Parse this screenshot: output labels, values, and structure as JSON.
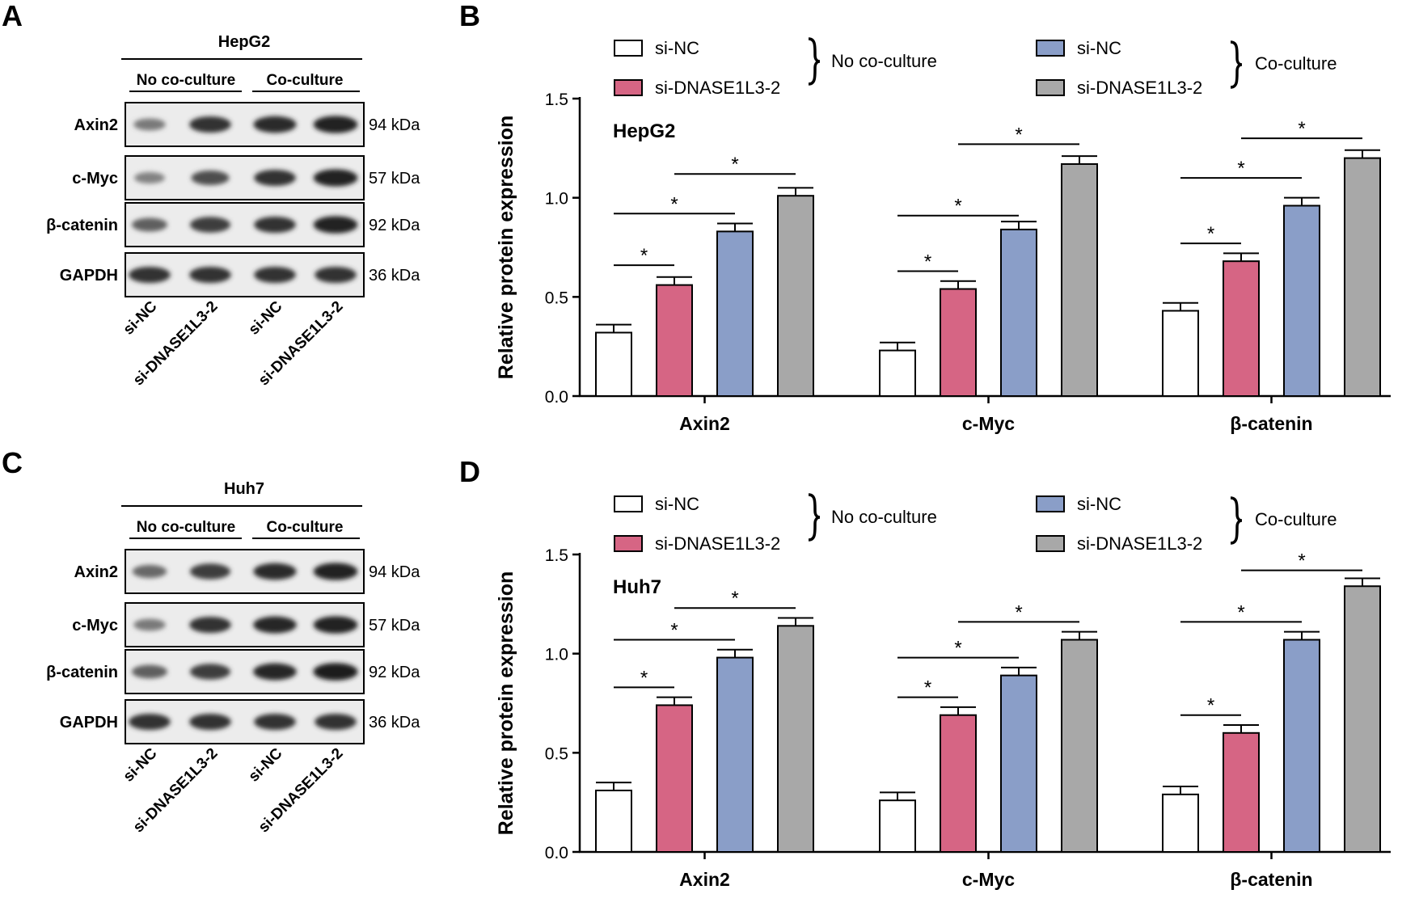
{
  "colors": {
    "si_nc_no": "#ffffff",
    "si_dnase_no": "#d66584",
    "si_nc_co": "#8a9ec8",
    "si_dnase_co": "#a8a8a8",
    "text": "#000000"
  },
  "panels": [
    {
      "letter": "A",
      "blot": {
        "cell_line": "HepG2",
        "group_labels": [
          "No co-culture",
          "Co-culture"
        ],
        "rows": [
          {
            "protein": "Axin2",
            "kda": "94 kDa",
            "intensity": [
              0.45,
              0.85,
              0.9,
              0.95
            ]
          },
          {
            "protein": "c-Myc",
            "kda": "57 kDa",
            "intensity": [
              0.4,
              0.7,
              0.85,
              0.95
            ]
          },
          {
            "protein": "β-catenin",
            "kda": "92 kDa",
            "intensity": [
              0.6,
              0.8,
              0.85,
              0.95
            ]
          },
          {
            "protein": "GAPDH",
            "kda": "36 kDa",
            "intensity": [
              0.85,
              0.85,
              0.85,
              0.85
            ]
          }
        ],
        "lane_labels": [
          "si-NC",
          "si-DNASE1L3-2",
          "si-NC",
          "si-DNASE1L3-2"
        ]
      }
    },
    {
      "letter": "B",
      "chart_title": "HepG2"
    },
    {
      "letter": "C",
      "blot": {
        "cell_line": "Huh7",
        "group_labels": [
          "No co-culture",
          "Co-culture"
        ],
        "rows": [
          {
            "protein": "Axin2",
            "kda": "94 kDa",
            "intensity": [
              0.55,
              0.8,
              0.9,
              0.95
            ]
          },
          {
            "protein": "c-Myc",
            "kda": "57 kDa",
            "intensity": [
              0.45,
              0.85,
              0.92,
              0.95
            ]
          },
          {
            "protein": "β-catenin",
            "kda": "92 kDa",
            "intensity": [
              0.6,
              0.8,
              0.92,
              0.97
            ]
          },
          {
            "protein": "GAPDH",
            "kda": "36 kDa",
            "intensity": [
              0.85,
              0.85,
              0.85,
              0.85
            ]
          }
        ],
        "lane_labels": [
          "si-NC",
          "si-DNASE1L3-2",
          "si-NC",
          "si-DNASE1L3-2"
        ]
      }
    },
    {
      "letter": "D",
      "chart_title": "Huh7"
    }
  ],
  "legend": {
    "entries": [
      "si-NC",
      "si-DNASE1L3-2",
      "si-NC",
      "si-DNASE1L3-2"
    ],
    "groups": [
      "No co-culture",
      "Co-culture"
    ]
  },
  "chart_data": [
    {
      "type": "bar",
      "title": "HepG2",
      "xlabel": "",
      "ylabel": "Relative protein expression",
      "ylim": [
        0,
        1.5
      ],
      "yticks": [
        "0.0",
        "0.5",
        "1.0",
        "1.5"
      ],
      "categories": [
        "Axin2",
        "c-Myc",
        "β-catenin"
      ],
      "series": [
        {
          "name": "si-NC (No co-culture)",
          "values": [
            0.32,
            0.23,
            0.43
          ],
          "errors": [
            0.04,
            0.04,
            0.04
          ]
        },
        {
          "name": "si-DNASE1L3-2 (No co-culture)",
          "values": [
            0.56,
            0.54,
            0.68
          ],
          "errors": [
            0.04,
            0.04,
            0.04
          ]
        },
        {
          "name": "si-NC (Co-culture)",
          "values": [
            0.83,
            0.84,
            0.96
          ],
          "errors": [
            0.04,
            0.04,
            0.04
          ]
        },
        {
          "name": "si-DNASE1L3-2 (Co-culture)",
          "values": [
            1.01,
            1.17,
            1.2
          ],
          "errors": [
            0.04,
            0.04,
            0.04
          ]
        }
      ],
      "significance": [
        {
          "category": 0,
          "from": 0,
          "to": 1,
          "y": 0.66,
          "label": "*"
        },
        {
          "category": 0,
          "from": 0,
          "to": 2,
          "y": 0.92,
          "label": "*"
        },
        {
          "category": 0,
          "from": 1,
          "to": 3,
          "y": 1.12,
          "label": "*"
        },
        {
          "category": 1,
          "from": 0,
          "to": 1,
          "y": 0.63,
          "label": "*"
        },
        {
          "category": 1,
          "from": 0,
          "to": 2,
          "y": 0.91,
          "label": "*"
        },
        {
          "category": 1,
          "from": 1,
          "to": 3,
          "y": 1.27,
          "label": "*"
        },
        {
          "category": 2,
          "from": 0,
          "to": 1,
          "y": 0.77,
          "label": "*"
        },
        {
          "category": 2,
          "from": 0,
          "to": 2,
          "y": 1.1,
          "label": "*"
        },
        {
          "category": 2,
          "from": 1,
          "to": 3,
          "y": 1.3,
          "label": "*"
        }
      ]
    },
    {
      "type": "bar",
      "title": "Huh7",
      "xlabel": "",
      "ylabel": "Relative protein expression",
      "ylim": [
        0,
        1.5
      ],
      "yticks": [
        "0.0",
        "0.5",
        "1.0",
        "1.5"
      ],
      "categories": [
        "Axin2",
        "c-Myc",
        "β-catenin"
      ],
      "series": [
        {
          "name": "si-NC (No co-culture)",
          "values": [
            0.31,
            0.26,
            0.29
          ],
          "errors": [
            0.04,
            0.04,
            0.04
          ]
        },
        {
          "name": "si-DNASE1L3-2 (No co-culture)",
          "values": [
            0.74,
            0.69,
            0.6
          ],
          "errors": [
            0.04,
            0.04,
            0.04
          ]
        },
        {
          "name": "si-NC (Co-culture)",
          "values": [
            0.98,
            0.89,
            1.07
          ],
          "errors": [
            0.04,
            0.04,
            0.04
          ]
        },
        {
          "name": "si-DNASE1L3-2 (Co-culture)",
          "values": [
            1.14,
            1.07,
            1.34
          ],
          "errors": [
            0.04,
            0.04,
            0.04
          ]
        }
      ],
      "significance": [
        {
          "category": 0,
          "from": 0,
          "to": 1,
          "y": 0.83,
          "label": "*"
        },
        {
          "category": 0,
          "from": 0,
          "to": 2,
          "y": 1.07,
          "label": "*"
        },
        {
          "category": 0,
          "from": 1,
          "to": 3,
          "y": 1.23,
          "label": "*"
        },
        {
          "category": 1,
          "from": 0,
          "to": 1,
          "y": 0.78,
          "label": "*"
        },
        {
          "category": 1,
          "from": 0,
          "to": 2,
          "y": 0.98,
          "label": "*"
        },
        {
          "category": 1,
          "from": 1,
          "to": 3,
          "y": 1.16,
          "label": "*"
        },
        {
          "category": 2,
          "from": 0,
          "to": 1,
          "y": 0.69,
          "label": "*"
        },
        {
          "category": 2,
          "from": 0,
          "to": 2,
          "y": 1.16,
          "label": "*"
        },
        {
          "category": 2,
          "from": 1,
          "to": 3,
          "y": 1.42,
          "label": "*"
        }
      ]
    }
  ]
}
